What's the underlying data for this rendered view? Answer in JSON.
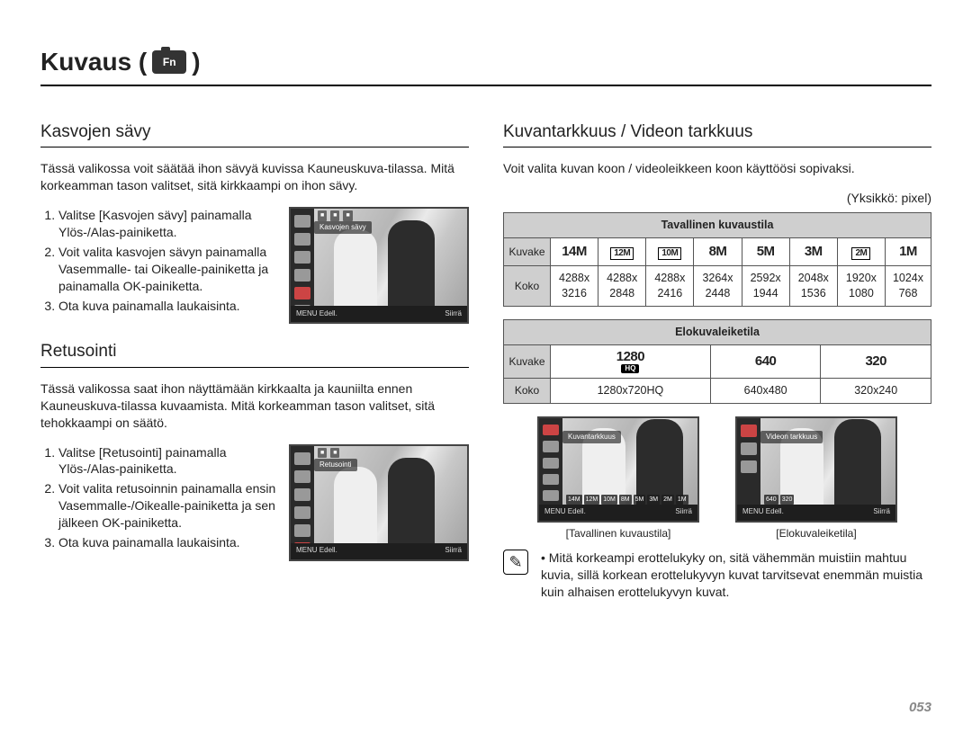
{
  "page_title": "Kuvaus (",
  "page_title_close": ")",
  "camera_fn_label": "Fn",
  "page_number": "053",
  "left": {
    "section1": {
      "title": "Kasvojen sävy",
      "body": "Tässä valikossa voit säätää ihon sävyä kuvissa Kauneuskuva-tilassa. Mitä korkeamman tason valitset, sitä kirkkaampi on ihon sävy.",
      "steps": [
        "Valitse [Kasvojen sävy] painamalla Ylös-/Alas-painiketta.",
        "Voit valita kasvojen sävyn painamalla Vasemmalle- tai Oikealle-painiketta ja painamalla OK-painiketta.",
        "Ota kuva painamalla laukaisinta."
      ],
      "lcd": {
        "highlight_label": "Kasvojen sävy",
        "bottom_left": "Edell.",
        "bottom_right": "Siirrä",
        "menu_label": "MENU"
      }
    },
    "section2": {
      "title": "Retusointi",
      "body": "Tässä valikossa saat ihon näyttämään kirkkaalta ja kauniilta ennen Kauneuskuva-tilassa kuvaamista. Mitä korkeamman tason valitset, sitä tehokkaampi on säätö.",
      "steps": [
        "Valitse [Retusointi] painamalla Ylös-/Alas-painiketta.",
        "Voit valita retusoinnin painamalla ensin Vasemmalle-/Oikealle-painiketta ja sen jälkeen OK-painiketta.",
        "Ota kuva painamalla laukaisinta."
      ],
      "lcd": {
        "highlight_label": "Retusointi",
        "bottom_left": "Edell.",
        "bottom_right": "Siirrä",
        "menu_label": "MENU"
      }
    }
  },
  "right": {
    "title": "Kuvantarkkuus / Videon tarkkuus",
    "body": "Voit valita kuvan koon / videoleikkeen koon käyttöösi sopivaksi.",
    "unit": "(Yksikkö: pixel)",
    "table_still": {
      "header": "Tavallinen kuvaustila",
      "row_icon_label": "Kuvake",
      "row_size_label": "Koko",
      "icons": [
        "14M",
        "12M",
        "10M",
        "8M",
        "5M",
        "3M",
        "2M",
        "1M"
      ],
      "icon_boxed": [
        false,
        true,
        true,
        false,
        false,
        false,
        true,
        false
      ],
      "sizes": [
        "4288x 3216",
        "4288x 2848",
        "4288x 2416",
        "3264x 2448",
        "2592x 1944",
        "2048x 1536",
        "1920x 1080",
        "1024x 768"
      ]
    },
    "table_movie": {
      "header": "Elokuvaleiketila",
      "row_icon_label": "Kuvake",
      "row_size_label": "Koko",
      "icons": [
        "1280 HQ",
        "640",
        "320"
      ],
      "sizes": [
        "1280x720HQ",
        "640x480",
        "320x240"
      ]
    },
    "twin_lcds": {
      "left": {
        "highlight": "Kuvantarkkuus",
        "iconrow": "14M 12M 10M 8M 5M 3M 2M 1M",
        "bottom_left": "Edell.",
        "bottom_right": "Siirrä",
        "caption": "[Tavallinen kuvaustila]"
      },
      "right": {
        "highlight": "Videon tarkkuus",
        "iconrow": "640  320",
        "bottom_left": "Edell.",
        "bottom_right": "Siirrä",
        "caption": "[Elokuvaleiketila]"
      }
    },
    "note": "Mitä korkeampi erottelukyky on, sitä vähemmän muistiin mahtuu kuvia, sillä korkean erottelukyvyn kuvat tarvitsevat enemmän muistia kuin alhaisen erottelukyvyn kuvat."
  }
}
